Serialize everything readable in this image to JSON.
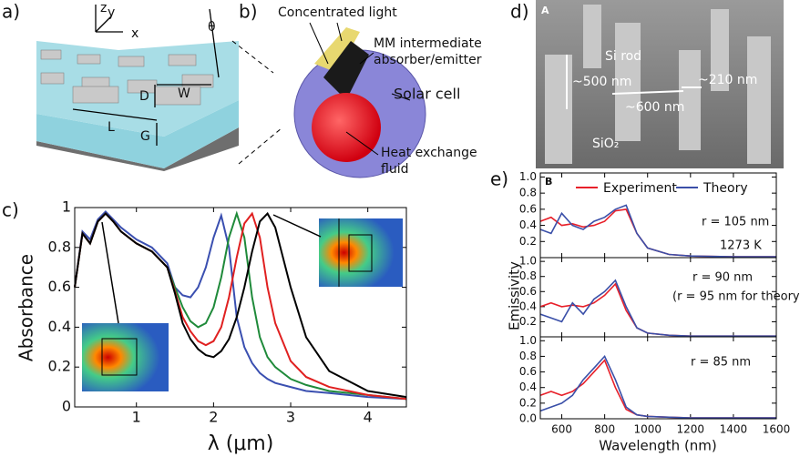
{
  "figure": {
    "panel_labels": [
      "a)",
      "b)",
      "c)",
      "d)",
      "e)"
    ],
    "schematic_a": [
      "z",
      "y",
      "x",
      "θ",
      "D",
      "W",
      "L",
      "G"
    ],
    "schematic_b": [
      "Concentrated light",
      "MM intermediate",
      "absorber/emitter",
      "Solar cell",
      "Heat exchange",
      "fluid"
    ],
    "sem_d": [
      "A",
      "Si rod",
      "~500 nm",
      "~210 nm",
      "~600 nm",
      "SiO₂"
    ]
  },
  "chart_data": [
    {
      "type": "line",
      "xlabel": "λ (μm)",
      "ylabel": "Absorbance",
      "x": [
        0.2,
        0.3,
        0.4,
        0.5,
        0.6,
        0.7,
        0.8,
        1.0,
        1.2,
        1.4,
        1.5,
        1.6,
        1.7,
        1.8,
        1.9,
        2.0,
        2.1,
        2.2,
        2.3,
        2.4,
        2.5,
        2.6,
        2.7,
        2.8,
        3.0,
        3.2,
        3.5,
        4.0,
        4.5
      ],
      "xlim": [
        0.2,
        4.5
      ],
      "ylim": [
        0,
        1
      ],
      "xticks": [
        1,
        2,
        3,
        4
      ],
      "yticks": [
        0,
        0.2,
        0.4,
        0.6,
        0.8,
        1
      ],
      "series": [
        {
          "color": "#3a4fb0",
          "values": [
            0.6,
            0.88,
            0.84,
            0.94,
            0.98,
            0.94,
            0.9,
            0.84,
            0.8,
            0.72,
            0.6,
            0.56,
            0.55,
            0.6,
            0.7,
            0.85,
            0.96,
            0.8,
            0.45,
            0.3,
            0.22,
            0.17,
            0.14,
            0.12,
            0.1,
            0.08,
            0.07,
            0.05,
            0.04
          ]
        },
        {
          "color": "#1f8a3a",
          "values": [
            0.6,
            0.87,
            0.82,
            0.93,
            0.97,
            0.93,
            0.88,
            0.82,
            0.78,
            0.7,
            0.6,
            0.5,
            0.43,
            0.4,
            0.42,
            0.5,
            0.65,
            0.85,
            0.97,
            0.85,
            0.55,
            0.35,
            0.25,
            0.2,
            0.14,
            0.11,
            0.08,
            0.06,
            0.04
          ]
        },
        {
          "color": "#e02020",
          "values": [
            0.6,
            0.87,
            0.82,
            0.93,
            0.97,
            0.93,
            0.88,
            0.82,
            0.78,
            0.7,
            0.58,
            0.45,
            0.38,
            0.33,
            0.31,
            0.33,
            0.4,
            0.55,
            0.75,
            0.92,
            0.97,
            0.85,
            0.6,
            0.42,
            0.23,
            0.15,
            0.1,
            0.06,
            0.04
          ]
        },
        {
          "color": "#000000",
          "values": [
            0.6,
            0.87,
            0.82,
            0.93,
            0.97,
            0.93,
            0.88,
            0.82,
            0.78,
            0.7,
            0.57,
            0.42,
            0.34,
            0.29,
            0.26,
            0.25,
            0.28,
            0.34,
            0.45,
            0.6,
            0.78,
            0.93,
            0.97,
            0.9,
            0.6,
            0.35,
            0.18,
            0.08,
            0.05
          ]
        }
      ]
    },
    {
      "type": "line",
      "annotations": [
        "B",
        "r = 105 nm",
        "1273 K"
      ],
      "x": [
        500,
        550,
        600,
        650,
        700,
        750,
        800,
        850,
        900,
        950,
        1000,
        1100,
        1200,
        1400,
        1600
      ],
      "xlim": [
        500,
        1600
      ],
      "ylim": [
        0,
        1.05
      ],
      "xticks": [
        600,
        800,
        1000,
        1200,
        1400,
        1600
      ],
      "yticks": [
        0.2,
        0.4,
        0.6,
        0.8,
        {
          "value": 1,
          "label": "1.0"
        }
      ],
      "series": [
        {
          "name": "Experiment",
          "color": "#e8202a",
          "values": [
            0.45,
            0.5,
            0.4,
            0.42,
            0.38,
            0.4,
            0.45,
            0.58,
            0.6,
            0.3,
            0.12,
            0.04,
            0.02,
            0.01,
            0.01
          ]
        },
        {
          "name": "Theory",
          "color": "#3a4fa8",
          "values": [
            0.35,
            0.3,
            0.55,
            0.4,
            0.35,
            0.45,
            0.5,
            0.6,
            0.65,
            0.3,
            0.12,
            0.04,
            0.02,
            0.01,
            0.01
          ]
        }
      ]
    },
    {
      "type": "line",
      "ylabel": "Emissivity",
      "annotations": [
        "r = 90 nm",
        "(r = 95 nm for theory)"
      ],
      "x": [
        500,
        550,
        600,
        650,
        700,
        750,
        800,
        850,
        900,
        950,
        1000,
        1100,
        1200,
        1400,
        1600
      ],
      "xlim": [
        500,
        1600
      ],
      "ylim": [
        0,
        1.05
      ],
      "xticks": [
        600,
        800,
        1000,
        1200,
        1400,
        1600
      ],
      "yticks": [
        0.2,
        0.4,
        0.6,
        0.8,
        {
          "value": 1,
          "label": "1.0"
        }
      ],
      "series": [
        {
          "color": "#e8202a",
          "values": [
            0.4,
            0.45,
            0.4,
            0.42,
            0.4,
            0.45,
            0.55,
            0.7,
            0.35,
            0.12,
            0.05,
            0.02,
            0.01,
            0.01,
            0.01
          ]
        },
        {
          "color": "#3a4fa8",
          "values": [
            0.3,
            0.25,
            0.2,
            0.45,
            0.3,
            0.5,
            0.6,
            0.75,
            0.4,
            0.12,
            0.05,
            0.02,
            0.01,
            0.01,
            0.01
          ]
        }
      ]
    },
    {
      "type": "line",
      "xlabel": "Wavelength (nm)",
      "annotations": [
        "r = 85 nm"
      ],
      "x": [
        500,
        550,
        600,
        650,
        700,
        750,
        800,
        850,
        900,
        950,
        1000,
        1100,
        1200,
        1400,
        1600
      ],
      "xlim": [
        500,
        1600
      ],
      "ylim": [
        0,
        1.05
      ],
      "xticks": [
        600,
        800,
        1000,
        1200,
        1400,
        1600
      ],
      "yticks": [
        {
          "value": 0,
          "label": "0.0"
        },
        0.2,
        0.4,
        0.6,
        0.8,
        {
          "value": 1,
          "label": "1.0"
        }
      ],
      "series": [
        {
          "color": "#e8202a",
          "values": [
            0.3,
            0.35,
            0.3,
            0.35,
            0.45,
            0.6,
            0.75,
            0.4,
            0.12,
            0.05,
            0.03,
            0.02,
            0.01,
            0.01,
            0.01
          ]
        },
        {
          "color": "#3a4fa8",
          "values": [
            0.1,
            0.15,
            0.2,
            0.3,
            0.5,
            0.65,
            0.8,
            0.5,
            0.15,
            0.05,
            0.03,
            0.02,
            0.01,
            0.01,
            0.01
          ]
        }
      ]
    }
  ]
}
